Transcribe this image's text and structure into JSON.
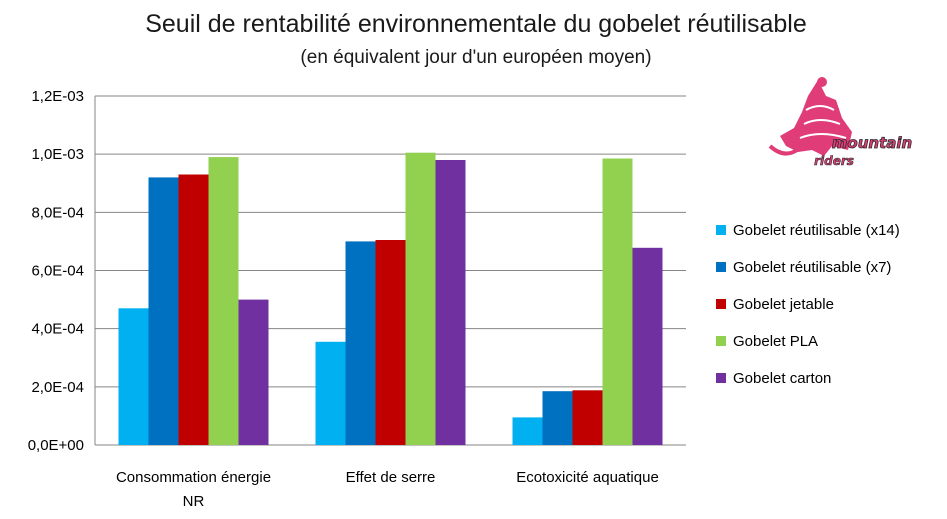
{
  "chart_data": {
    "type": "bar",
    "title": "Seuil de rentabilité environnementale du gobelet réutilisable",
    "subtitle": "(en équivalent jour d'un européen moyen)",
    "categories": [
      [
        "Consommation énergie",
        "NR"
      ],
      [
        "Effet de serre"
      ],
      [
        "Ecotoxicité aquatique"
      ]
    ],
    "yticks": [
      "0,0E+00",
      "2,0E-04",
      "4,0E-04",
      "6,0E-04",
      "8,0E-04",
      "1,0E-03",
      "1,2E-03"
    ],
    "ylim": [
      0,
      0.0012
    ],
    "ystep": 0.0002,
    "grid": true,
    "legend_position": "right",
    "series": [
      {
        "name": "Gobelet réutilisable (x14)",
        "color": "#00b0f0",
        "values": [
          0.00047,
          0.000355,
          9.5e-05
        ]
      },
      {
        "name": "Gobelet réutilisable (x7)",
        "color": "#0070c0",
        "values": [
          0.00092,
          0.0007,
          0.000185
        ]
      },
      {
        "name": "Gobelet jetable",
        "color": "#c00000",
        "values": [
          0.00093,
          0.000705,
          0.000188
        ]
      },
      {
        "name": "Gobelet PLA",
        "color": "#92d050",
        "values": [
          0.00099,
          0.001005,
          0.000985
        ]
      },
      {
        "name": "Gobelet carton",
        "color": "#7030a0",
        "values": [
          0.0005,
          0.00098,
          0.000678
        ]
      }
    ]
  },
  "logo": {
    "line1": "mountain",
    "line2": "riders",
    "color": "#e03c78"
  }
}
